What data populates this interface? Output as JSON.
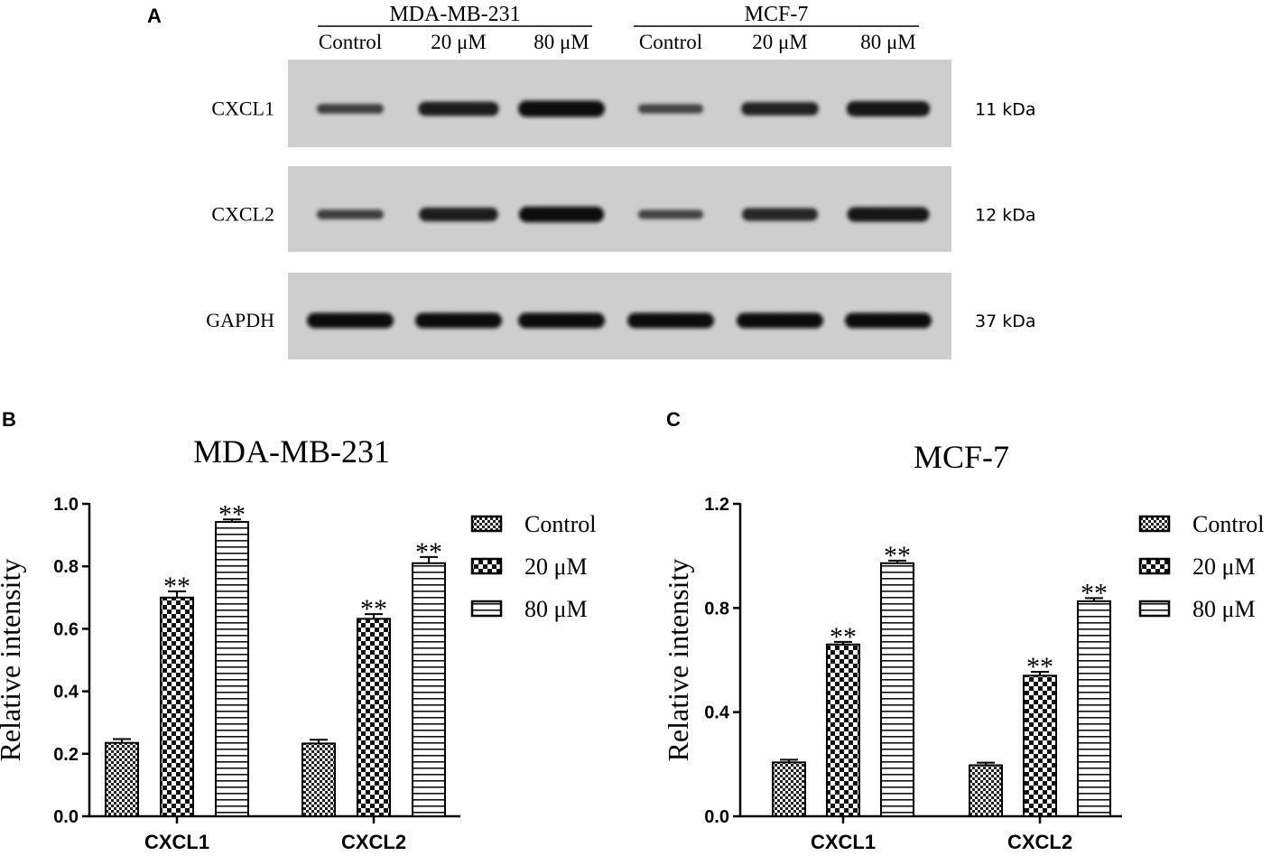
{
  "panel_a": {
    "label": "A",
    "groups": [
      {
        "name": "MDA-MB-231",
        "lanes": [
          "Control",
          "20 μM",
          "80 μM"
        ]
      },
      {
        "name": "MCF-7",
        "lanes": [
          "Control",
          "20 μM",
          "80 μM"
        ]
      }
    ],
    "blots": [
      {
        "protein": "CXCL1",
        "size": "11 kDa",
        "band_intensity": [
          0.35,
          0.8,
          1.0,
          0.3,
          0.7,
          0.9
        ]
      },
      {
        "protein": "CXCL2",
        "size": "12 kDa",
        "band_intensity": [
          0.35,
          0.75,
          0.95,
          0.3,
          0.65,
          0.85
        ]
      },
      {
        "protein": "GAPDH",
        "size": "37 kDa",
        "band_intensity": [
          1.0,
          1.0,
          1.0,
          1.0,
          1.0,
          1.0
        ]
      }
    ]
  },
  "chart_data": [
    {
      "panel": "B",
      "type": "bar",
      "title": "MDA-MB-231",
      "xlabel": "",
      "ylabel": "Relative intensity",
      "categories": [
        "CXCL1",
        "CXCL2"
      ],
      "ylim": [
        0,
        1.0
      ],
      "yticks": [
        "0.0",
        "0.2",
        "0.4",
        "0.6",
        "0.8",
        "1.0"
      ],
      "legend_position": "right",
      "series": [
        {
          "name": "Control",
          "pattern": "fine-check",
          "values": [
            0.235,
            0.233
          ],
          "errors": [
            0.012,
            0.012
          ],
          "marks": [
            "",
            ""
          ]
        },
        {
          "name": "20 μM",
          "pattern": "coarse-check",
          "values": [
            0.7,
            0.632
          ],
          "errors": [
            0.02,
            0.015
          ],
          "marks": [
            "**",
            "**"
          ]
        },
        {
          "name": "80 μM",
          "pattern": "horizontal-lines",
          "values": [
            0.942,
            0.81
          ],
          "errors": [
            0.008,
            0.02
          ],
          "marks": [
            "**",
            "**"
          ]
        }
      ]
    },
    {
      "panel": "C",
      "type": "bar",
      "title": "MCF-7",
      "xlabel": "",
      "ylabel": "Relative intensity",
      "categories": [
        "CXCL1",
        "CXCL2"
      ],
      "ylim": [
        0,
        1.2
      ],
      "yticks": [
        "0.0",
        "0.4",
        "0.8",
        "1.2"
      ],
      "legend_position": "right",
      "series": [
        {
          "name": "Control",
          "pattern": "fine-check",
          "values": [
            0.207,
            0.196
          ],
          "errors": [
            0.01,
            0.01
          ],
          "marks": [
            "",
            ""
          ]
        },
        {
          "name": "20 μM",
          "pattern": "coarse-check",
          "values": [
            0.66,
            0.54
          ],
          "errors": [
            0.01,
            0.015
          ],
          "marks": [
            "**",
            "**"
          ]
        },
        {
          "name": "80 μM",
          "pattern": "horizontal-lines",
          "values": [
            0.972,
            0.826
          ],
          "errors": [
            0.01,
            0.012
          ],
          "marks": [
            "**",
            "**"
          ]
        }
      ]
    }
  ]
}
